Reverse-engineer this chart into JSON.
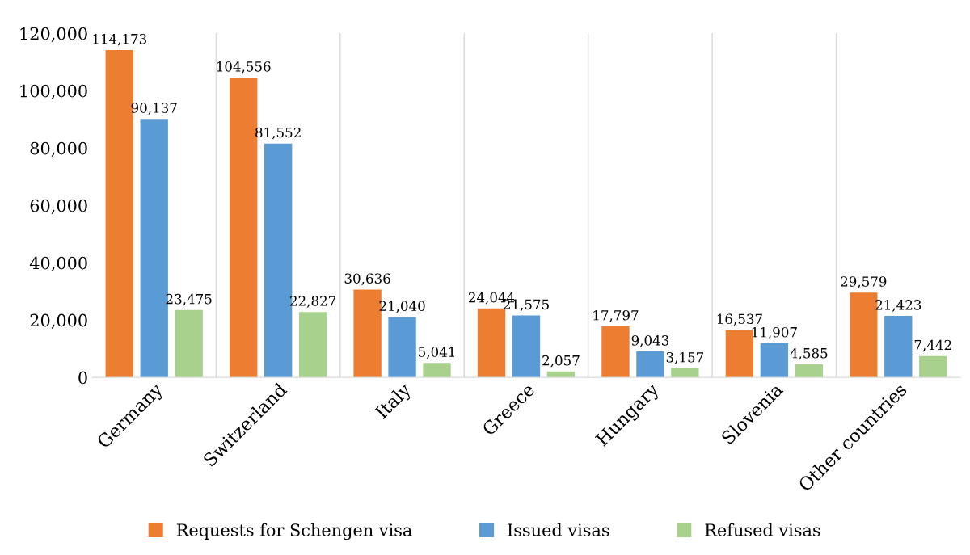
{
  "chart_data": {
    "type": "bar",
    "categories": [
      "Germany",
      "Switzerland",
      "Italy",
      "Greece",
      "Hungary",
      "Slovenia",
      "Other countries"
    ],
    "series": [
      {
        "name": "Requests for Schengen visa",
        "color": "#ed7d31",
        "values": [
          114173,
          104556,
          30636,
          24044,
          17797,
          16537,
          29579
        ],
        "value_labels": [
          "114,173",
          "104,556",
          "30,636",
          "24,044",
          "17,797",
          "16,537",
          "29,579"
        ]
      },
      {
        "name": "Issued visas",
        "color": "#5b9bd5",
        "values": [
          90137,
          81552,
          21040,
          21575,
          9043,
          11907,
          21423
        ],
        "value_labels": [
          "90,137",
          "81,552",
          "21,040",
          "21,575",
          "9,043",
          "11,907",
          "21,423"
        ]
      },
      {
        "name": "Refused visas",
        "color": "#a9d18e",
        "values": [
          23475,
          22827,
          5041,
          2057,
          3157,
          4585,
          7442
        ],
        "value_labels": [
          "23,475",
          "22,827",
          "5,041",
          "2,057",
          "3,157",
          "4,585",
          "7,442"
        ]
      }
    ],
    "ylim": [
      0,
      120000
    ],
    "yticks": [
      {
        "value": 0,
        "label": "0"
      },
      {
        "value": 20000,
        "label": "20,000"
      },
      {
        "value": 40000,
        "label": "40,000"
      },
      {
        "value": 60000,
        "label": "60,000"
      },
      {
        "value": 80000,
        "label": "80,000"
      },
      {
        "value": 100000,
        "label": "100,000"
      },
      {
        "value": 120000,
        "label": "120,000"
      }
    ],
    "grid": "x",
    "legend": "bottom"
  }
}
